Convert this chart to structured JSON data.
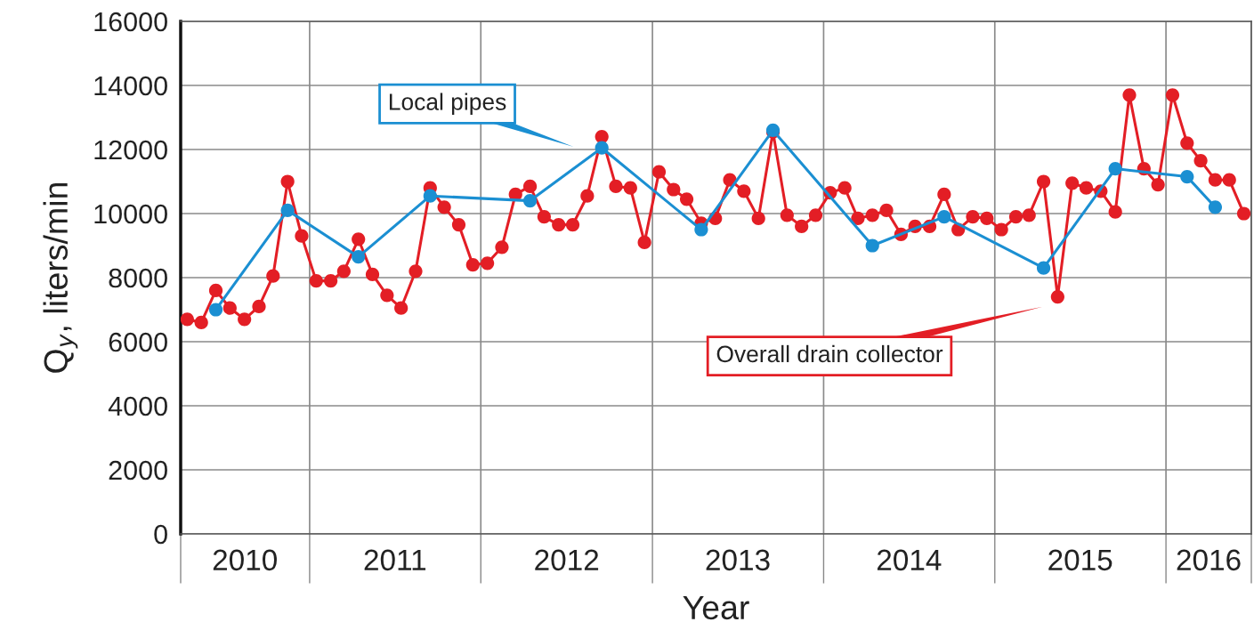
{
  "chart_data": {
    "type": "line",
    "xlabel": "Year",
    "ylabel": "Q$_{y}$, liters/min",
    "xlim": [
      "2010-04-01",
      "2016-07-01"
    ],
    "xticks": [
      {
        "value": "2010-04-01",
        "label": null
      },
      {
        "value": "2010-08-16",
        "label": "2010"
      },
      {
        "value": "2011-01-01",
        "label": null
      },
      {
        "value": "2011-07-02",
        "label": "2011"
      },
      {
        "value": "2012-01-01",
        "label": null
      },
      {
        "value": "2012-07-02",
        "label": "2012"
      },
      {
        "value": "2013-01-01",
        "label": null
      },
      {
        "value": "2013-07-02",
        "label": "2013"
      },
      {
        "value": "2014-01-01",
        "label": null
      },
      {
        "value": "2014-07-02",
        "label": "2014"
      },
      {
        "value": "2015-01-01",
        "label": null
      },
      {
        "value": "2015-07-02",
        "label": "2015"
      },
      {
        "value": "2016-01-01",
        "label": null
      },
      {
        "value": "2016-04-01",
        "label": "2016"
      },
      {
        "value": "2016-07-01",
        "label": null
      }
    ],
    "ylim": [
      0,
      16000
    ],
    "yticks": [
      0,
      2000,
      4000,
      6000,
      8000,
      10000,
      12000,
      14000,
      16000
    ],
    "grid": true,
    "legend": false,
    "marker": "circle",
    "line_style": "solid",
    "series": [
      {
        "color": "#1b8fd2",
        "x": [
          "2010-06-15",
          "2010-11-15",
          "2011-04-15",
          "2011-09-15",
          "2012-04-15",
          "2012-09-15",
          "2013-04-15",
          "2013-09-15",
          "2014-04-15",
          "2014-09-15",
          "2015-04-15",
          "2015-09-15",
          "2016-02-15",
          "2016-04-15"
        ],
        "values": [
          7000,
          10100,
          8650,
          10550,
          10400,
          12050,
          9500,
          12600,
          9000,
          9900,
          8300,
          11400,
          11150,
          10200
        ]
      },
      {
        "color": "#e31e25",
        "x": [
          "2010-04-15",
          "2010-05-15",
          "2010-06-15",
          "2010-07-15",
          "2010-08-15",
          "2010-09-15",
          "2010-10-15",
          "2010-11-15",
          "2010-12-15",
          "2011-01-15",
          "2011-02-15",
          "2011-03-15",
          "2011-04-15",
          "2011-05-15",
          "2011-06-15",
          "2011-07-15",
          "2011-08-15",
          "2011-09-15",
          "2011-10-15",
          "2011-11-15",
          "2011-12-15",
          "2012-01-15",
          "2012-02-15",
          "2012-03-15",
          "2012-04-15",
          "2012-05-15",
          "2012-06-15",
          "2012-07-15",
          "2012-08-15",
          "2012-09-15",
          "2012-10-15",
          "2012-11-15",
          "2012-12-15",
          "2013-01-15",
          "2013-02-15",
          "2013-03-15",
          "2013-04-15",
          "2013-05-15",
          "2013-06-15",
          "2013-07-15",
          "2013-08-15",
          "2013-09-15",
          "2013-10-15",
          "2013-11-15",
          "2013-12-15",
          "2014-01-15",
          "2014-02-15",
          "2014-03-15",
          "2014-04-15",
          "2014-05-15",
          "2014-06-15",
          "2014-07-15",
          "2014-08-15",
          "2014-09-15",
          "2014-10-15",
          "2014-11-15",
          "2014-12-15",
          "2015-01-15",
          "2015-02-15",
          "2015-03-15",
          "2015-04-15",
          "2015-05-15",
          "2015-06-15",
          "2015-07-15",
          "2015-08-15",
          "2015-09-15",
          "2015-10-15",
          "2015-11-15",
          "2015-12-15",
          "2016-01-15",
          "2016-02-15",
          "2016-03-15",
          "2016-04-15",
          "2016-05-15",
          "2016-06-15"
        ],
        "values": [
          6700,
          6600,
          7600,
          7050,
          6700,
          7100,
          8050,
          11000,
          9300,
          7900,
          7900,
          8200,
          9200,
          8100,
          7450,
          7050,
          8200,
          10800,
          10200,
          9650,
          8400,
          8450,
          8950,
          10600,
          10850,
          9900,
          9650,
          9650,
          10550,
          12400,
          10850,
          10800,
          9100,
          11300,
          10750,
          10450,
          9700,
          9850,
          11050,
          10700,
          9850,
          12550,
          9950,
          9600,
          9950,
          10650,
          10800,
          9850,
          9950,
          10100,
          9350,
          9600,
          9600,
          10600,
          9500,
          9900,
          9850,
          9500,
          9900,
          9950,
          11000,
          7400,
          10950,
          10800,
          10700,
          10050,
          13700,
          11400,
          10900,
          13700,
          12200,
          11650,
          11050,
          11050,
          10000
        ]
      }
    ],
    "annotations": [
      "Local pipes",
      "Overall drain collector"
    ]
  }
}
